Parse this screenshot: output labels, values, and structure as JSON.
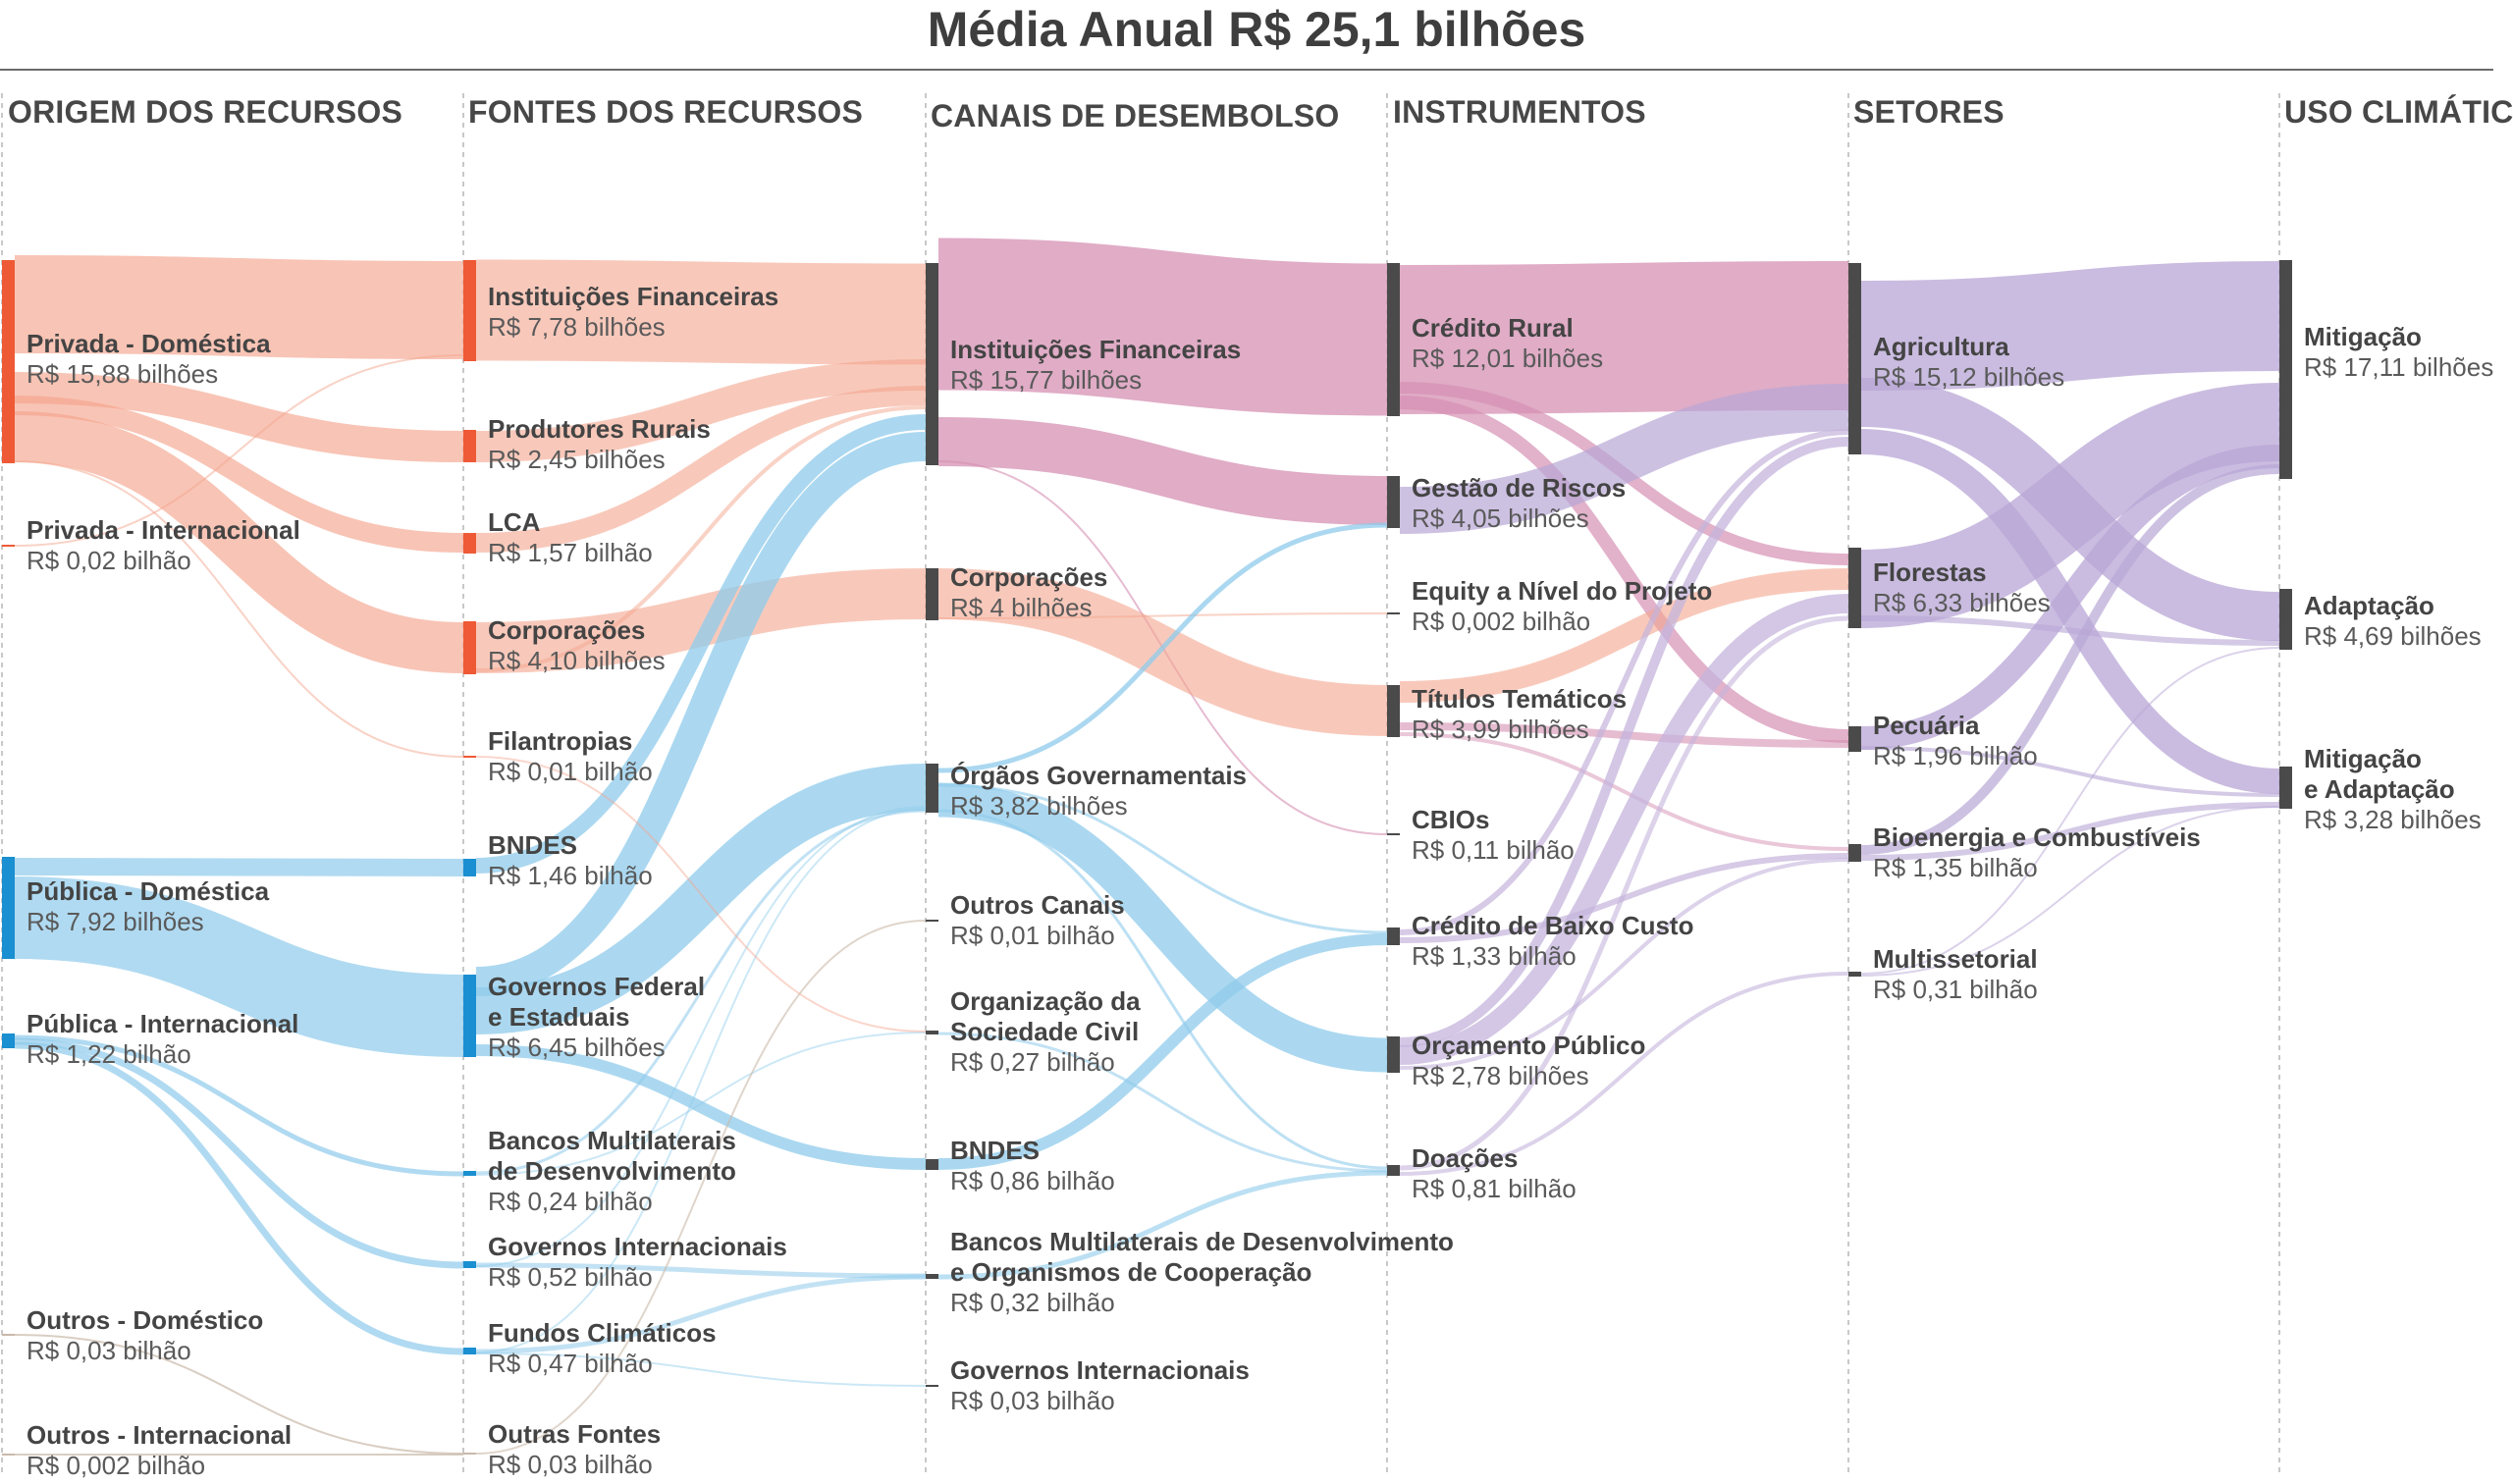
{
  "title": "Média Anual R$ 25,1 bilhões",
  "columns": [
    "ORIGEM DOS RECURSOS",
    "FONTES DOS RECURSOS",
    "CANAIS DE DESEMBOLSO",
    "INSTRUMENTOS",
    "SETORES",
    "USO CLIMÁTICO"
  ],
  "colors": {
    "privada": "#f4a58d",
    "privada_bar": "#ee5a36",
    "publica": "#8fcbeb",
    "publica_bar": "#1a8fd1",
    "canais": "#d590b3",
    "setores": "#b8a6d6",
    "instrumentos_alt": "#c4b4dc",
    "dark_bar": "#4a4a4a",
    "outros": "#c9b9a9"
  },
  "nodes": {
    "o1": {
      "name": "Privada - Doméstica",
      "value": "R$ 15,88 bilhões"
    },
    "o2": {
      "name": "Privada - Internacional",
      "value": "R$ 0,02 bilhão"
    },
    "o3": {
      "name": "Pública - Doméstica",
      "value": "R$ 7,92 bilhões"
    },
    "o4": {
      "name": "Pública - Internacional",
      "value": "R$ 1,22 bilhão"
    },
    "o5": {
      "name": "Outros - Doméstico",
      "value": "R$ 0,03 bilhão"
    },
    "o6": {
      "name": "Outros - Internacional",
      "value": "R$ 0,002 bilhão"
    },
    "f1": {
      "name": "Instituições Financeiras",
      "value": "R$ 7,78 bilhões"
    },
    "f2": {
      "name": "Produtores Rurais",
      "value": "R$ 2,45 bilhões"
    },
    "f3": {
      "name": "LCA",
      "value": "R$ 1,57 bilhão"
    },
    "f4": {
      "name": "Corporações",
      "value": "R$ 4,10 bilhões"
    },
    "f5": {
      "name": "Filantropias",
      "value": "R$ 0,01 bilhão"
    },
    "f6": {
      "name": "BNDES",
      "value": "R$ 1,46 bilhão"
    },
    "f7": {
      "name": "Governos Federal\ne Estaduais",
      "value": "R$ 6,45 bilhões"
    },
    "f8": {
      "name": "Bancos Multilaterais\nde Desenvolvimento",
      "value": "R$ 0,24 bilhão"
    },
    "f9": {
      "name": "Governos Internacionais",
      "value": "R$ 0,52 bilhão"
    },
    "f10": {
      "name": "Fundos Climáticos",
      "value": "R$ 0,47 bilhão"
    },
    "f11": {
      "name": "Outras Fontes",
      "value": "R$ 0,03 bilhão"
    },
    "c1": {
      "name": "Instituições Financeiras",
      "value": "R$ 15,77 bilhões"
    },
    "c2": {
      "name": "Corporações",
      "value": "R$ 4 bilhões"
    },
    "c3": {
      "name": "Órgãos Governamentais",
      "value": "R$ 3,82 bilhões"
    },
    "c4": {
      "name": "Outros Canais",
      "value": "R$ 0,01 bilhão"
    },
    "c5": {
      "name": "Organização da\nSociedade Civil",
      "value": "R$ 0,27 bilhão"
    },
    "c6": {
      "name": "BNDES",
      "value": "R$ 0,86 bilhão"
    },
    "c7": {
      "name": "Bancos Multilaterais de Desenvolvimento\ne Organismos de Cooperação",
      "value": "R$ 0,32 bilhão"
    },
    "c8": {
      "name": "Governos Internacionais",
      "value": "R$ 0,03 bilhão"
    },
    "i1": {
      "name": "Crédito Rural",
      "value": "R$ 12,01 bilhões"
    },
    "i2": {
      "name": "Gestão de Riscos",
      "value": "R$ 4,05 bilhões"
    },
    "i3": {
      "name": "Equity a Nível do Projeto",
      "value": "R$ 0,002 bilhão"
    },
    "i4": {
      "name": "Títulos Temáticos",
      "value": "R$ 3,99 bilhões"
    },
    "i5": {
      "name": "CBIOs",
      "value": "R$ 0,11 bilhão"
    },
    "i6": {
      "name": "Crédito de Baixo Custo",
      "value": "R$ 1,33 bilhão"
    },
    "i7": {
      "name": "Orçamento Público",
      "value": "R$ 2,78 bilhões"
    },
    "i8": {
      "name": "Doações",
      "value": "R$ 0,81 bilhão"
    },
    "s1": {
      "name": "Agricultura",
      "value": "R$ 15,12 bilhões"
    },
    "s2": {
      "name": "Florestas",
      "value": "R$ 6,33 bilhões"
    },
    "s3": {
      "name": "Pecuária",
      "value": "R$ 1,96 bilhão"
    },
    "s4": {
      "name": "Bioenergia e Combustíveis",
      "value": "R$ 1,35 bilhão"
    },
    "s5": {
      "name": "Multissetorial",
      "value": "R$ 0,31 bilhão"
    },
    "u1": {
      "name": "Mitigação",
      "value": "R$ 17,11 bilhões"
    },
    "u2": {
      "name": "Adaptação",
      "value": "R$ 4,69 bilhões"
    },
    "u3": {
      "name": "Mitigação\ne Adaptação",
      "value": "R$ 3,28 bilhões"
    }
  }
}
